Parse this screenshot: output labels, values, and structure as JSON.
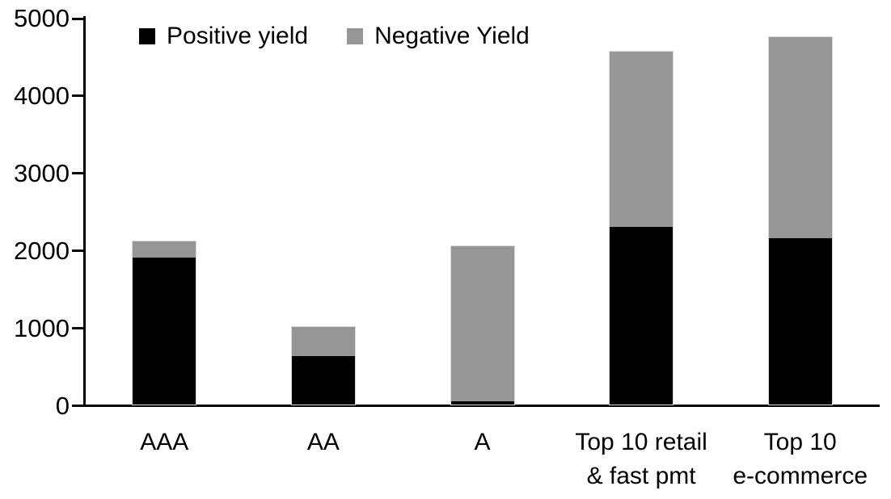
{
  "chart_data": {
    "type": "bar",
    "stacked": true,
    "title": "",
    "xlabel": "",
    "ylabel": "",
    "categories": [
      "AAA",
      "AA",
      "A",
      "Top 10 retail\n& fast pmt",
      "Top 10\ne-commerce"
    ],
    "series": [
      {
        "name": "Positive yield",
        "color": "#000000",
        "values": [
          1900,
          625,
          40,
          2290,
          2150
        ]
      },
      {
        "name": "Negative Yield",
        "color": "#969696",
        "values": [
          210,
          375,
          2000,
          2270,
          2600
        ]
      }
    ],
    "totals": [
      2110,
      1000,
      2040,
      4560,
      4750
    ],
    "ylim": [
      0,
      5000
    ],
    "yticks": [
      0,
      1000,
      2000,
      3000,
      4000,
      5000
    ],
    "grid": false,
    "legend_position": "top-left-inside",
    "axis_color": "#000000",
    "background_color": "#ffffff"
  }
}
